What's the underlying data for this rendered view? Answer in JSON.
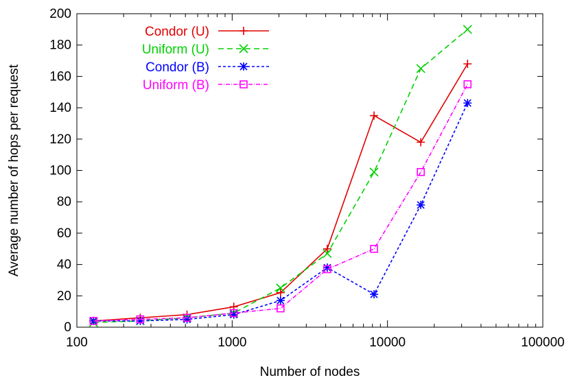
{
  "chart_data": {
    "type": "line",
    "title": "",
    "xlabel": "Number of nodes",
    "ylabel": "Average number of hops per request",
    "xscale": "log",
    "xlim": [
      100,
      100000
    ],
    "ylim": [
      0,
      200
    ],
    "x_ticks": [
      100,
      1000,
      10000,
      100000
    ],
    "x_tick_labels": [
      "100",
      "1000",
      "10000",
      "100000"
    ],
    "y_ticks": [
      0,
      20,
      40,
      60,
      80,
      100,
      120,
      140,
      160,
      180,
      200
    ],
    "y_tick_labels": [
      "0",
      "20",
      "40",
      "60",
      "80",
      "100",
      "120",
      "140",
      "160",
      "180",
      "200"
    ],
    "grid": false,
    "legend_position": "top-left",
    "x": [
      128,
      256,
      512,
      1024,
      2048,
      4096,
      8192,
      16384,
      32768
    ],
    "series": [
      {
        "name": "Condor (U)",
        "color": "#e00000",
        "dash": "solid",
        "marker": "plus",
        "values": [
          4,
          6,
          8,
          13,
          22,
          50,
          135,
          118,
          168
        ]
      },
      {
        "name": "Uniform (U)",
        "color": "#00d000",
        "dash": "dashed",
        "marker": "cross",
        "values": [
          3,
          4,
          6,
          9,
          25,
          47,
          99,
          165,
          190
        ]
      },
      {
        "name": "Condor (B)",
        "color": "#0000ff",
        "dash": "dotted",
        "marker": "star",
        "values": [
          4,
          4,
          5,
          8,
          17,
          38,
          21,
          78,
          143
        ]
      },
      {
        "name": "Uniform (B)",
        "color": "#ff00ff",
        "dash": "dashdot",
        "marker": "square",
        "values": [
          4,
          5,
          6,
          9,
          12,
          37,
          50,
          99,
          155
        ]
      }
    ]
  }
}
